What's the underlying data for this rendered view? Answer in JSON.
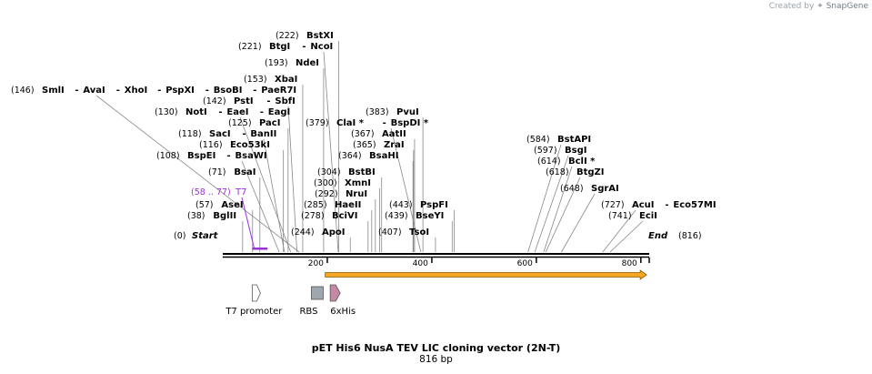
{
  "credit": {
    "prefix": "Created by",
    "brand": "SnapGene"
  },
  "title": "pET His6 NusA TEV LIC cloning vector (2N-T)",
  "length_label": "816 bp",
  "ends": [
    {
      "pos": "(0)",
      "name": "Start"
    },
    {
      "pos": "(816)",
      "name": "End"
    }
  ],
  "ruler_ticks": [
    {
      "value": 200,
      "label": "200"
    },
    {
      "value": 400,
      "label": "400"
    },
    {
      "value": 600,
      "label": "600"
    },
    {
      "value": 800,
      "label": "800"
    }
  ],
  "sites": [
    {
      "pos": "(222)",
      "names": [
        "BstXI"
      ],
      "loc": 222
    },
    {
      "pos": "(221)",
      "names": [
        "BtgI",
        "NcoI"
      ],
      "loc": 221
    },
    {
      "pos": "(193)",
      "names": [
        "NdeI"
      ],
      "loc": 193
    },
    {
      "pos": "(153)",
      "names": [
        "XbaI"
      ],
      "loc": 153
    },
    {
      "pos": "(146)",
      "names": [
        "SmlI",
        "AvaI",
        "XhoI",
        "PspXI",
        "BsoBI",
        "PaeR7I"
      ],
      "loc": 146
    },
    {
      "pos": "(142)",
      "names": [
        "PstI",
        "SbfI"
      ],
      "loc": 142
    },
    {
      "pos": "(130)",
      "names": [
        "NotI",
        "EaeI",
        "EagI"
      ],
      "loc": 130
    },
    {
      "pos": "(125)",
      "names": [
        "PacI"
      ],
      "loc": 125
    },
    {
      "pos": "(118)",
      "names": [
        "SacI",
        "BanII"
      ],
      "loc": 118
    },
    {
      "pos": "(116)",
      "names": [
        "Eco53kI"
      ],
      "loc": 116
    },
    {
      "pos": "(108)",
      "names": [
        "BspEI",
        "BsaWI"
      ],
      "loc": 108
    },
    {
      "pos": "(71)",
      "names": [
        "BsaI"
      ],
      "loc": 71
    },
    {
      "pos": "(57)",
      "names": [
        "AseI"
      ],
      "loc": 57
    },
    {
      "pos": "(38)",
      "names": [
        "BglII"
      ],
      "loc": 38
    },
    {
      "pos": "(383)",
      "names": [
        "PvuI"
      ],
      "loc": 383
    },
    {
      "pos": "(379)",
      "names": [
        "ClaI *",
        "BspDI *"
      ],
      "loc": 379
    },
    {
      "pos": "(367)",
      "names": [
        "AatII"
      ],
      "loc": 367
    },
    {
      "pos": "(365)",
      "names": [
        "ZraI"
      ],
      "loc": 365
    },
    {
      "pos": "(364)",
      "names": [
        "BsaHI"
      ],
      "loc": 364
    },
    {
      "pos": "(304)",
      "names": [
        "BstBI"
      ],
      "loc": 304
    },
    {
      "pos": "(300)",
      "names": [
        "XmnI"
      ],
      "loc": 300
    },
    {
      "pos": "(292)",
      "names": [
        "NruI"
      ],
      "loc": 292
    },
    {
      "pos": "(285)",
      "names": [
        "HaeII"
      ],
      "loc": 285
    },
    {
      "pos": "(278)",
      "names": [
        "BciVI"
      ],
      "loc": 278
    },
    {
      "pos": "(244)",
      "names": [
        "ApoI"
      ],
      "loc": 244
    },
    {
      "pos": "(443)",
      "names": [
        "PspFI"
      ],
      "loc": 443
    },
    {
      "pos": "(439)",
      "names": [
        "BseYI"
      ],
      "loc": 439
    },
    {
      "pos": "(407)",
      "names": [
        "TsoI"
      ],
      "loc": 407
    },
    {
      "pos": "(584)",
      "names": [
        "BstAPI"
      ],
      "loc": 584
    },
    {
      "pos": "(597)",
      "names": [
        "BsgI"
      ],
      "loc": 597
    },
    {
      "pos": "(614)",
      "names": [
        "BclI *"
      ],
      "loc": 614
    },
    {
      "pos": "(618)",
      "names": [
        "BtgZI"
      ],
      "loc": 618
    },
    {
      "pos": "(648)",
      "names": [
        "SgrAI"
      ],
      "loc": 648
    },
    {
      "pos": "(727)",
      "names": [
        "AcuI",
        "Eco57MI"
      ],
      "loc": 727
    },
    {
      "pos": "(741)",
      "names": [
        "EciI"
      ],
      "loc": 741
    }
  ],
  "primer": {
    "pos": "(58 .. 77)",
    "name": "T7",
    "start": 58,
    "end": 77,
    "color": "#9b30d9"
  },
  "orf": {
    "start": 196,
    "end": 811,
    "color": "#f5a623",
    "outline": "#8a5a00"
  },
  "features": [
    {
      "name": "T7 promoter",
      "type": "promoter",
      "loc": 65,
      "color": "#ffffff"
    },
    {
      "name": "RBS",
      "type": "rbs",
      "loc": 180,
      "color": "#a0a6ad"
    },
    {
      "name": "6xHis",
      "type": "tag",
      "loc": 216,
      "color": "#c48aa4"
    }
  ],
  "colors": {
    "backbone": "#000000",
    "line": "#888888",
    "text": "#000000",
    "pos_text": "#000000"
  }
}
